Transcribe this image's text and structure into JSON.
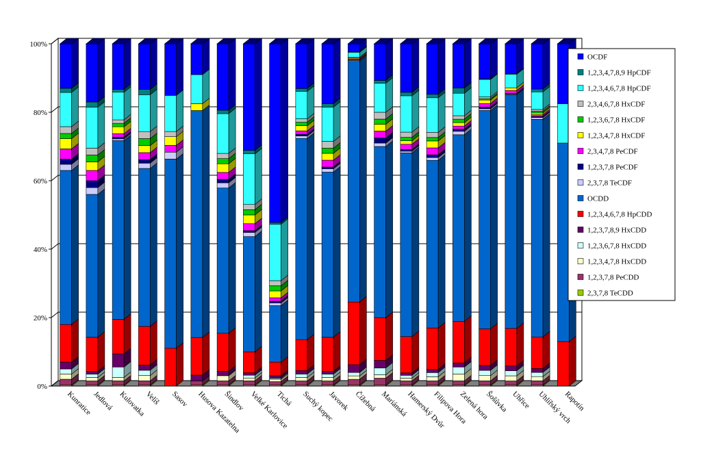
{
  "chart_data": {
    "type": "bar",
    "stacked": "percent",
    "three_d": true,
    "grid": true,
    "legend_placement": "right",
    "y_ticks": [
      "0%",
      "20%",
      "40%",
      "60%",
      "80%",
      "100%"
    ],
    "ylim": [
      0,
      100
    ],
    "categories": [
      "Kunratice",
      "Jedlová",
      "Kulovatka",
      "Velíš",
      "Sasov",
      "Husova Kazatelna",
      "Šindlov",
      "Velké Karlovice",
      "Tichá",
      "Suchý kopec",
      "Javorek",
      "Čížebná",
      "Mariánská",
      "Hamerský Dvůr",
      "Filipova Hora",
      "Zelená hora",
      "Šošůvka",
      "Uhřice",
      "Uhlířský vrch",
      "Rapotín"
    ],
    "series": [
      {
        "name": "2,3,7,8 TeCDD",
        "color": "#99CC00",
        "values": [
          0.3,
          0.3,
          0.3,
          0.3,
          0,
          0.3,
          0.3,
          0.3,
          0.3,
          0.3,
          0.3,
          0.3,
          0.3,
          0.3,
          0.3,
          0.3,
          0.3,
          0.3,
          0.3,
          0
        ]
      },
      {
        "name": "1,2,3,7,8 PeCDD",
        "color": "#993366",
        "values": [
          1.7,
          1.2,
          1.2,
          1.2,
          0,
          1.2,
          1.2,
          1.2,
          1,
          1.2,
          1.2,
          1.7,
          2,
          1.2,
          1.2,
          1.2,
          1.2,
          1.2,
          1.2,
          0
        ]
      },
      {
        "name": "1,2,3,4,7,8 HxCDD",
        "color": "#FFFFCC",
        "values": [
          1.5,
          1,
          1,
          1.5,
          0,
          0,
          1.5,
          0.8,
          0.7,
          1,
          1,
          1,
          1,
          0.8,
          1.2,
          2,
          1.5,
          1.5,
          1.2,
          0
        ]
      },
      {
        "name": "1,2,3,6,7,8 HxCDD",
        "color": "#CCFFFF",
        "values": [
          1.5,
          1,
          3,
          1.5,
          0,
          0,
          0,
          0.8,
          0.3,
          1,
          1,
          1,
          2,
          0.8,
          1.2,
          2,
          1.5,
          1.5,
          1.2,
          0
        ]
      },
      {
        "name": "1,2,3,7,8,9 HxCDD",
        "color": "#660066",
        "values": [
          2,
          0.8,
          3.8,
          1.5,
          0,
          1.7,
          1.3,
          0.7,
          0.7,
          1,
          0.8,
          2.3,
          2.2,
          0.7,
          0.9,
          1.2,
          1.4,
          1.4,
          1.1,
          0
        ]
      },
      {
        "name": "1,2,3,4,6,7,8 HpCDD",
        "color": "#FF0000",
        "values": [
          11,
          10,
          10,
          11,
          11,
          11,
          11,
          6,
          4,
          9,
          10,
          18.5,
          12.5,
          10.5,
          12,
          12,
          10.5,
          11,
          9,
          13
        ]
      },
      {
        "name": "OCDD",
        "color": "#0066CC",
        "values": [
          45,
          41.7,
          51.7,
          45,
          55,
          66.3,
          42,
          33,
          16.5,
          58.5,
          48.2,
          71,
          50,
          53,
          48.5,
          54,
          62.5,
          68.5,
          62,
          58
        ]
      },
      {
        "name": "2,3,7,8 TeCDF",
        "color": "#CCCCFF",
        "values": [
          1.8,
          2,
          0.5,
          1.5,
          2,
          0,
          1.5,
          1.2,
          0.8,
          0.7,
          1,
          0.3,
          1,
          0.5,
          0.8,
          1,
          0.5,
          0.2,
          0.5,
          0
        ]
      },
      {
        "name": "1,2,3,7,8 PeCDF",
        "color": "#000080",
        "values": [
          1.5,
          2,
          0.5,
          1,
          0,
          0,
          1,
          0.5,
          0.5,
          0.5,
          0.5,
          0.2,
          1.5,
          0.5,
          0.8,
          0.6,
          0.5,
          0.2,
          0.3,
          0
        ]
      },
      {
        "name": "2,3,4,7,8 PeCDF",
        "color": "#FF00FF",
        "values": [
          3,
          3,
          1,
          2,
          2,
          0,
          2,
          2,
          1,
          1,
          2,
          0.3,
          2,
          1.5,
          2,
          0.9,
          1,
          0.8,
          0.5,
          0
        ]
      },
      {
        "name": "1,2,3,4,7,8 HxCDF",
        "color": "#FFFF00",
        "values": [
          3,
          2.5,
          2,
          2,
          2.5,
          2,
          2.5,
          2.5,
          2,
          1.5,
          2,
          0.3,
          2,
          1,
          2,
          1,
          1,
          0.8,
          0.5,
          0
        ]
      },
      {
        "name": "1,2,3,6,7,8 HxCDF",
        "color": "#00CC00",
        "values": [
          1.5,
          2,
          1,
          2,
          0,
          0,
          1.5,
          1.5,
          1.5,
          1,
          1.5,
          0,
          1.5,
          1,
          1,
          1,
          0.4,
          0,
          0.5,
          0
        ]
      },
      {
        "name": "2,3,4,6,7,8 HxCDF",
        "color": "#C0C0C0",
        "values": [
          2,
          2,
          1,
          2,
          1.5,
          0,
          1.5,
          1.5,
          1.5,
          1,
          2,
          0.1,
          2,
          1.5,
          1.5,
          1,
          0.5,
          0,
          0.5,
          0
        ]
      },
      {
        "name": "1,2,3,4,6,7,8 HpCDF",
        "color": "#33FFFF",
        "values": [
          10,
          12,
          8,
          10.5,
          10.5,
          8.5,
          11.5,
          14.5,
          16.5,
          8,
          10,
          1.5,
          8.5,
          10.5,
          10,
          6.5,
          5,
          4,
          5,
          11.5
        ]
      },
      {
        "name": "1,2,3,4,7,8,9 HpCDF",
        "color": "#008080",
        "values": [
          1.2,
          1.5,
          0.8,
          1.5,
          0,
          0,
          1,
          1,
          0.5,
          0.8,
          1,
          0.2,
          0.8,
          1,
          1,
          1.5,
          0.2,
          0.2,
          0.8,
          0
        ]
      },
      {
        "name": "OCDF",
        "color": "#0000FF",
        "values": [
          13,
          17,
          13.2,
          13,
          15,
          9,
          19.2,
          30.5,
          52.2,
          13,
          17.5,
          2.3,
          10.7,
          14,
          14.6,
          12.8,
          10,
          8.7,
          12.9,
          17.5
        ]
      }
    ]
  }
}
